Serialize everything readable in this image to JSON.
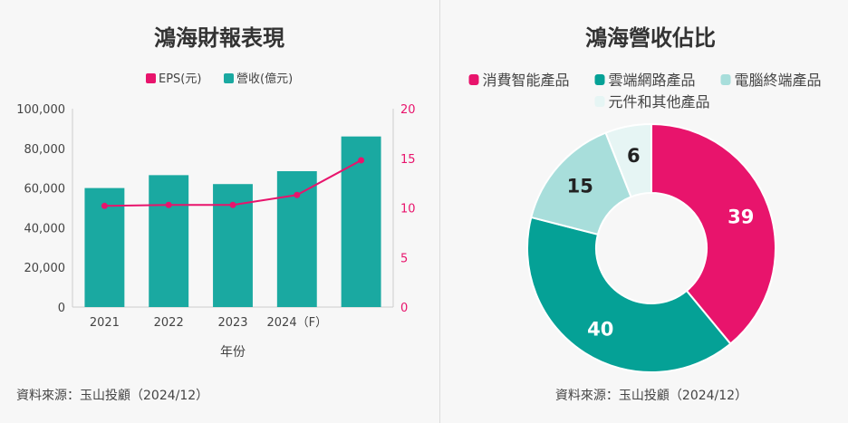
{
  "left": {
    "title": "鴻海財報表現",
    "source": "資料來源：玉山投顧（2024/12）",
    "colors": {
      "bar": "#1aa9a1",
      "line": "#e8146c"
    }
  },
  "right": {
    "title": "鴻海營收佔比",
    "source": "資料來源：玉山投顧（2024/12）"
  },
  "chart_data": [
    {
      "type": "bar",
      "title": "鴻海財報表現",
      "categories": [
        "2021",
        "2022",
        "2023",
        "2024（F）",
        ""
      ],
      "xlabel": "年份",
      "series": [
        {
          "name": "營收(億元)",
          "type": "bar",
          "axis": "left",
          "color": "#1aa9a1",
          "values": [
            60000,
            66500,
            62000,
            68500,
            86000
          ]
        },
        {
          "name": "EPS(元)",
          "type": "line",
          "axis": "right",
          "color": "#e8146c",
          "values": [
            10.2,
            10.3,
            10.3,
            11.3,
            14.8
          ]
        }
      ],
      "ylim_left": [
        0,
        100000
      ],
      "ylim_right": [
        0,
        20
      ],
      "yticks_left": [
        "0",
        "20,000",
        "40,000",
        "60,000",
        "80,000",
        "100,000"
      ],
      "yticks_right": [
        "0",
        "5",
        "10",
        "15",
        "20"
      ],
      "legend": [
        "EPS(元)",
        "營收(億元)"
      ],
      "legend_position": "top-center",
      "grid": false
    },
    {
      "type": "pie",
      "title": "鴻海營收佔比",
      "labels": [
        "消費智能產品",
        "雲端網路產品",
        "電腦終端產品",
        "元件和其他產品"
      ],
      "values": [
        39,
        40,
        15,
        6
      ],
      "colors": [
        "#e8146c",
        "#05a196",
        "#a8dedb",
        "#e6f5f4"
      ],
      "label_colors": [
        "#ffffff",
        "#ffffff",
        "#222222",
        "#222222"
      ],
      "legend_position": "top"
    }
  ]
}
